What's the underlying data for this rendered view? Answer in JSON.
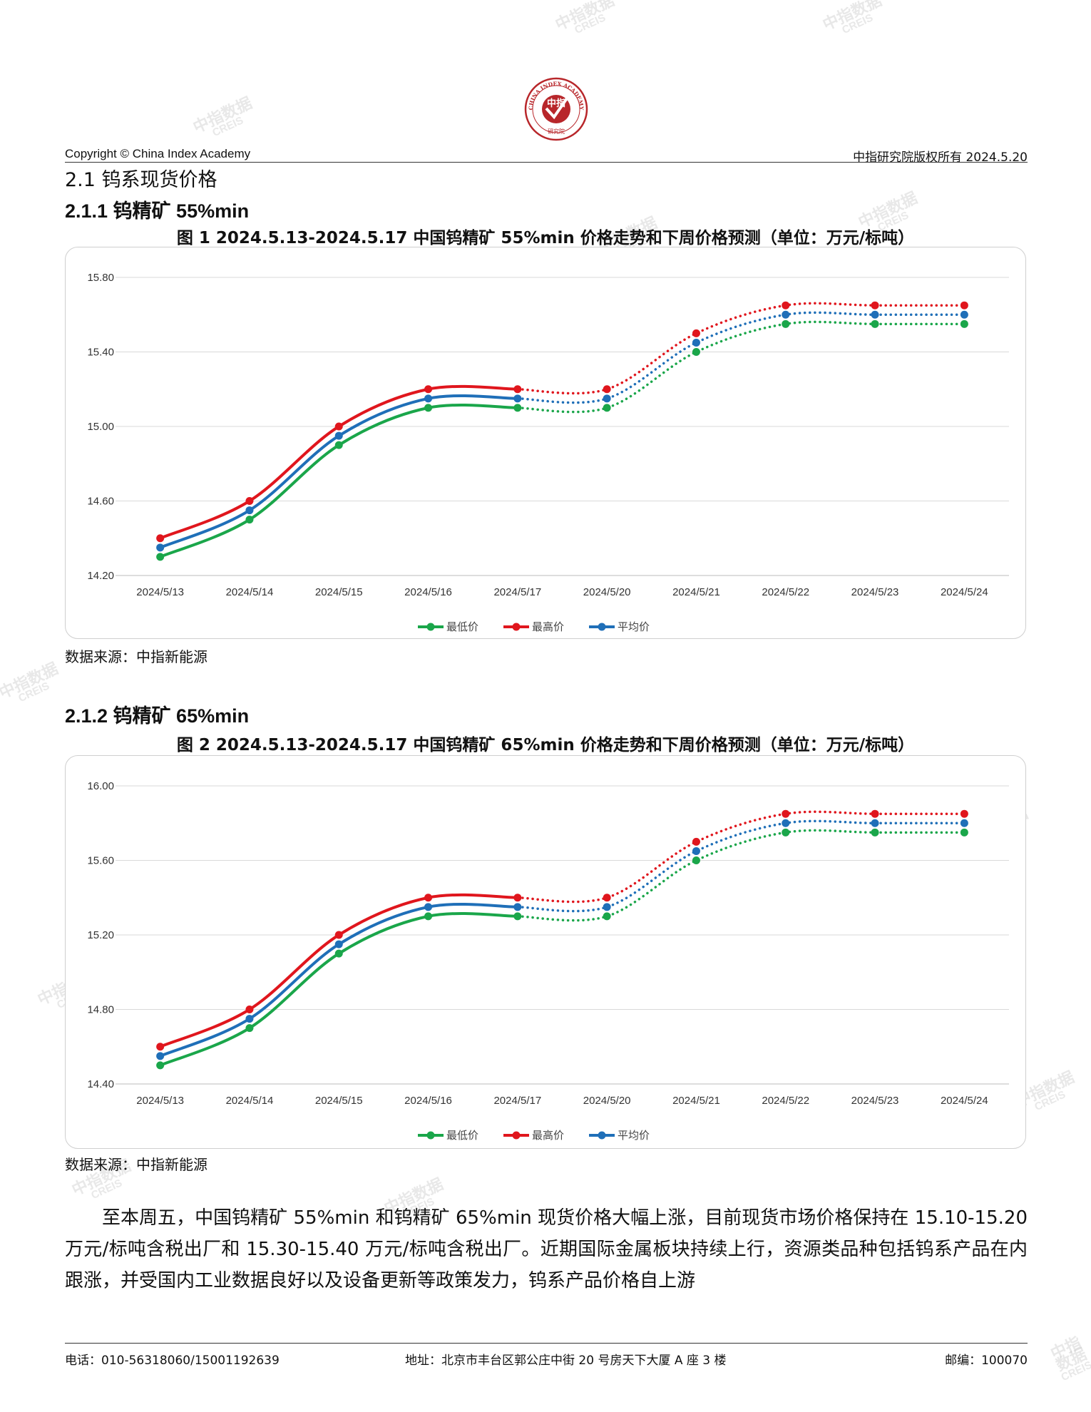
{
  "header": {
    "logo_text_top": "CHINA INDEX ACADEMY",
    "logo_text_center": "中指",
    "logo_text_bottom": "研究院",
    "copyright": "Copyright © China Index Academy",
    "rights": "中指研究院版权所有 2024.5.20"
  },
  "sections": {
    "s21": "2.1 钨系现货价格",
    "s211": "2.1.1 钨精矿 55%min",
    "s212": "2.1.2 钨精矿 65%min"
  },
  "figures": [
    {
      "title": "图 1 2024.5.13-2024.5.17 中国钨精矿 55%min 价格走势和下周价格预测（单位：万元/标吨）",
      "source": "数据来源：中指新能源"
    },
    {
      "title": "图 2 2024.5.13-2024.5.17 中国钨精矿 65%min 价格走势和下周价格预测（单位：万元/标吨）",
      "source": "数据来源：中指新能源"
    }
  ],
  "chart_data": [
    {
      "type": "line",
      "title": "",
      "x": [
        "2024/5/13",
        "2024/5/14",
        "2024/5/15",
        "2024/5/16",
        "2024/5/17",
        "2024/5/20",
        "2024/5/21",
        "2024/5/22",
        "2024/5/23",
        "2024/5/24"
      ],
      "ylim": [
        14.2,
        15.8
      ],
      "yticks": [
        "14.20",
        "14.60",
        "15.00",
        "15.40",
        "15.80"
      ],
      "grid": true,
      "legend_position": "bottom",
      "forecast_note": "dotted from 2024/5/17 onward",
      "series": [
        {
          "name": "最低价",
          "color": "#1aa64a",
          "values": [
            14.3,
            14.5,
            14.9,
            15.1,
            15.1,
            15.1,
            15.4,
            15.55,
            15.55,
            15.55
          ]
        },
        {
          "name": "最高价",
          "color": "#e0161d",
          "values": [
            14.4,
            14.6,
            15.0,
            15.2,
            15.2,
            15.2,
            15.5,
            15.65,
            15.65,
            15.65
          ]
        },
        {
          "name": "平均价",
          "color": "#1f6fb8",
          "values": [
            14.35,
            14.55,
            14.95,
            15.15,
            15.15,
            15.15,
            15.45,
            15.6,
            15.6,
            15.6
          ]
        }
      ]
    },
    {
      "type": "line",
      "title": "",
      "x": [
        "2024/5/13",
        "2024/5/14",
        "2024/5/15",
        "2024/5/16",
        "2024/5/17",
        "2024/5/20",
        "2024/5/21",
        "2024/5/22",
        "2024/5/23",
        "2024/5/24"
      ],
      "ylim": [
        14.4,
        16.0
      ],
      "yticks": [
        "14.40",
        "14.80",
        "15.20",
        "15.60",
        "16.00"
      ],
      "grid": true,
      "legend_position": "bottom",
      "forecast_note": "dotted from 2024/5/17 onward",
      "series": [
        {
          "name": "最低价",
          "color": "#1aa64a",
          "values": [
            14.5,
            14.7,
            15.1,
            15.3,
            15.3,
            15.3,
            15.6,
            15.75,
            15.75,
            15.75
          ]
        },
        {
          "name": "最高价",
          "color": "#e0161d",
          "values": [
            14.6,
            14.8,
            15.2,
            15.4,
            15.4,
            15.4,
            15.7,
            15.85,
            15.85,
            15.85
          ]
        },
        {
          "name": "平均价",
          "color": "#1f6fb8",
          "values": [
            14.55,
            14.75,
            15.15,
            15.35,
            15.35,
            15.35,
            15.65,
            15.8,
            15.8,
            15.8
          ]
        }
      ]
    }
  ],
  "paragraph": "至本周五，中国钨精矿 55%min 和钨精矿 65%min 现货价格大幅上涨，目前现货市场价格保持在 15.10-15.20 万元/标吨含税出厂和 15.30-15.40 万元/标吨含税出厂。近期国际金属板块持续上行，资源类品种包括钨系产品在内跟涨，并受国内工业数据良好以及设备更新等政策发力，钨系产品价格自上游",
  "footer": {
    "phone": "电话：010-56318060/15001192639",
    "address": "地址：北京市丰台区郭公庄中街 20 号房天下大厦 A 座 3 楼",
    "postcode": "邮编：100070"
  },
  "watermark": {
    "line1": "中指数据",
    "line2": "CREIS"
  }
}
